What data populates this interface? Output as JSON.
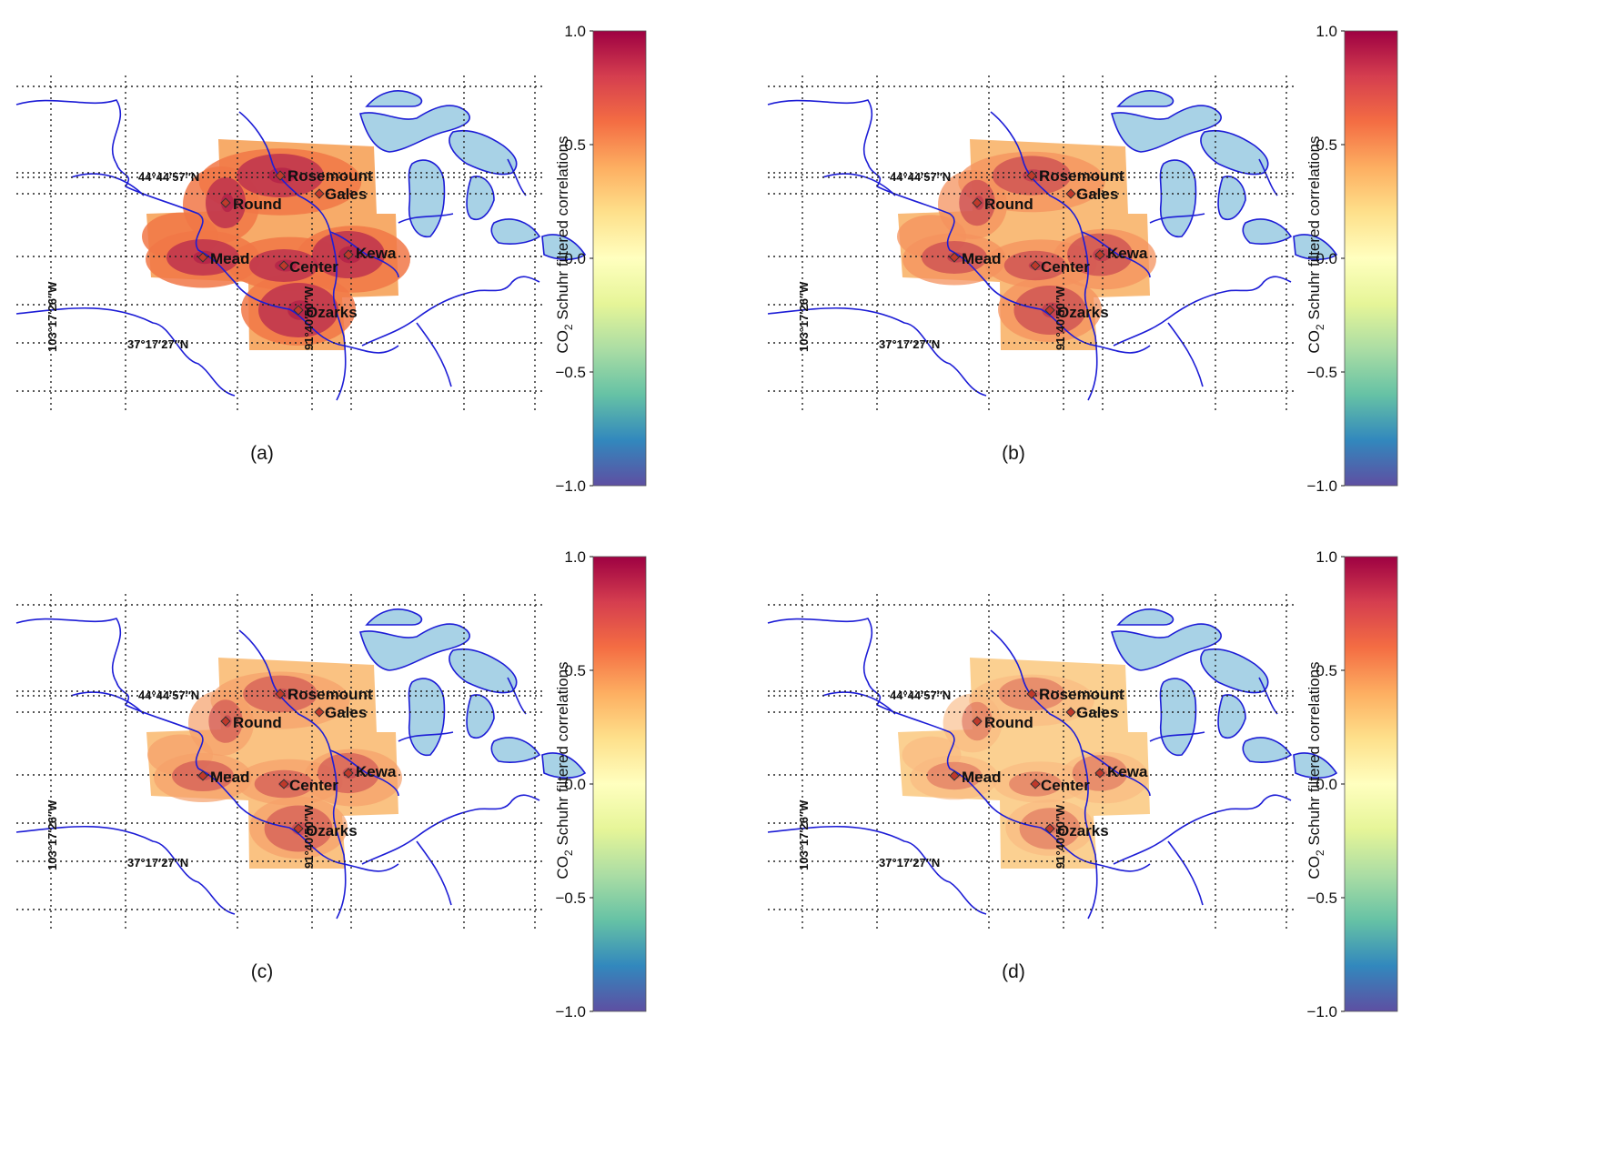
{
  "colorbar": {
    "title_prefix": "CO",
    "title_sub": "2",
    "title_suffix": " Schuhr filtered correlations",
    "ticks": [
      "1.0",
      "0.5",
      "0.0",
      "−0.5",
      "−1.0"
    ],
    "tick_values": [
      1.0,
      0.5,
      0.0,
      -0.5,
      -1.0
    ],
    "range": [
      -1.0,
      1.0
    ],
    "colors": [
      "#9e0142",
      "#d53e4f",
      "#f46d43",
      "#fdae61",
      "#fee08b",
      "#ffffbf",
      "#e6f598",
      "#abdda4",
      "#66c2a5",
      "#3288bd",
      "#5e4fa2"
    ]
  },
  "coords": {
    "lat_north": "44°44′57″N",
    "lat_south": "37°17′27″N",
    "lon_west": "103°17′26″W",
    "lon_east": "91°40′50″W"
  },
  "sites": [
    {
      "name": "Rosemount",
      "key": "rosemount"
    },
    {
      "name": "Gales",
      "key": "gales"
    },
    {
      "name": "Round",
      "key": "round"
    },
    {
      "name": "Mead",
      "key": "mead"
    },
    {
      "name": "Center",
      "key": "center"
    },
    {
      "name": "Kewa",
      "key": "kewa"
    },
    {
      "name": "Ozarks",
      "key": "ozarks"
    }
  ],
  "panels": [
    {
      "label": "(a)",
      "intensity": 0.9
    },
    {
      "label": "(b)",
      "intensity": 0.7
    },
    {
      "label": "(c)",
      "intensity": 0.6
    },
    {
      "label": "(d)",
      "intensity": 0.42
    }
  ],
  "colors": {
    "water": "#a8d2e6",
    "river": "#1d1dd6",
    "site_marker": "#c0392b"
  }
}
